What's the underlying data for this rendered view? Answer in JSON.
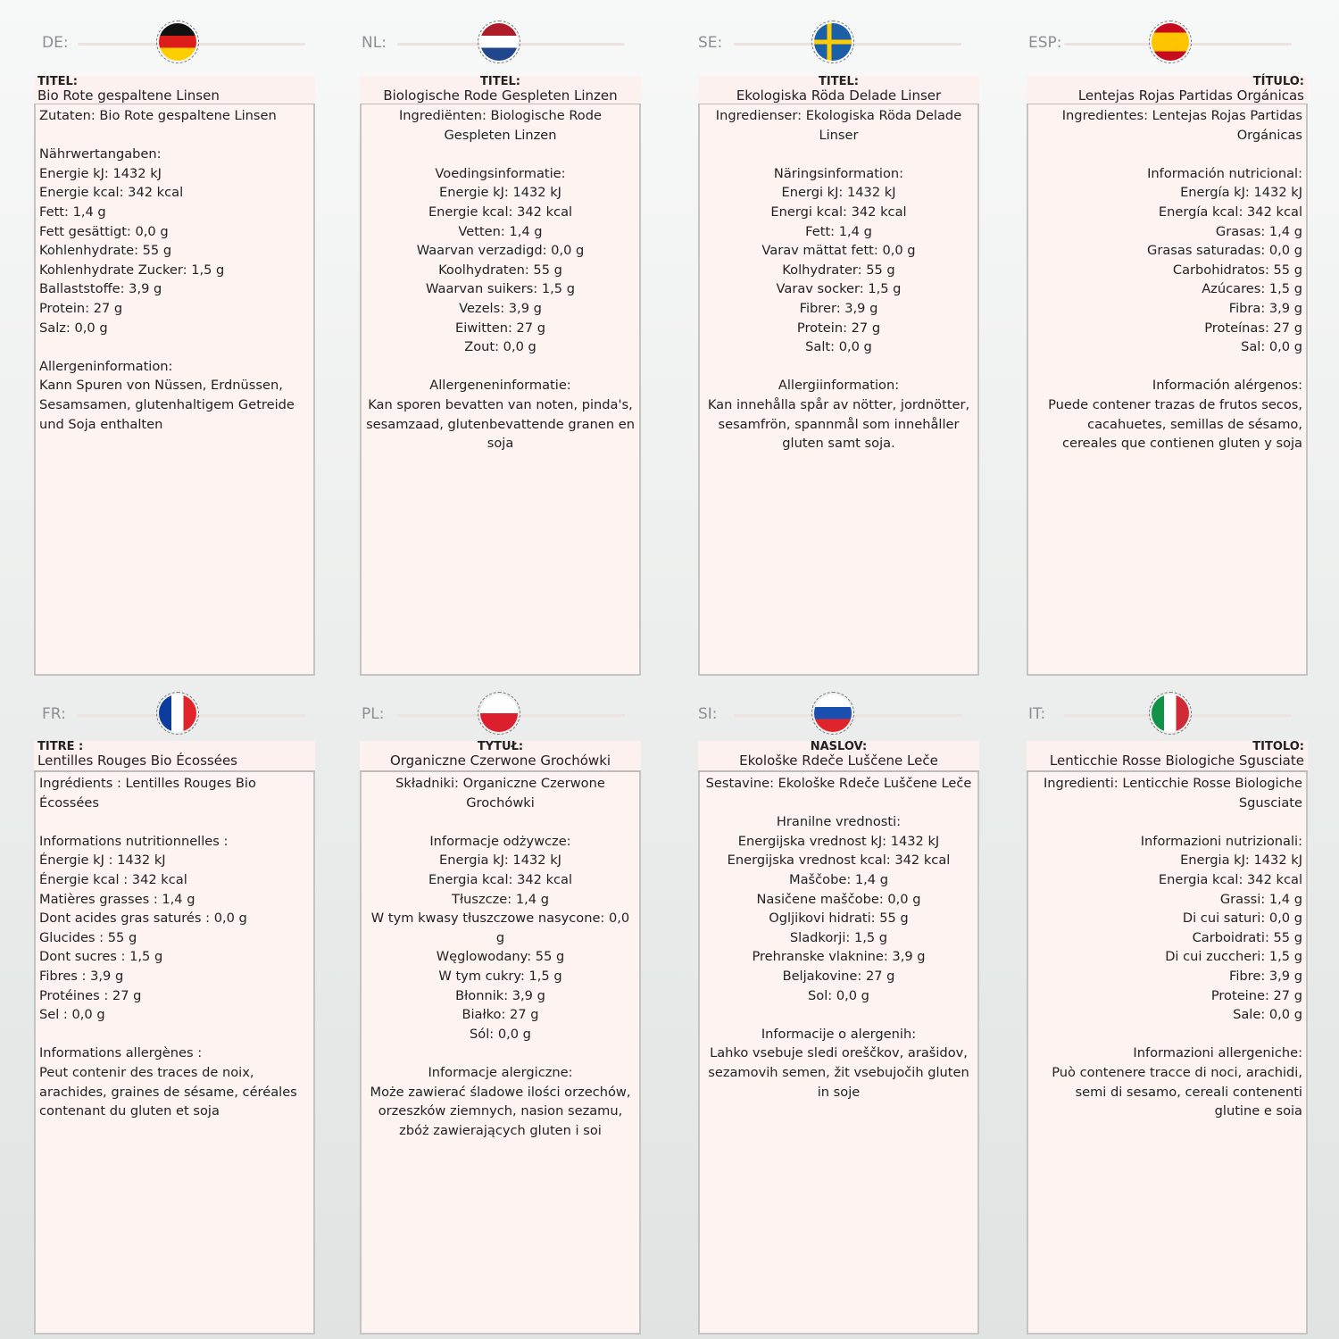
{
  "panels": [
    {
      "code": "DE:",
      "flag": "germany-flag",
      "align": "left",
      "title_label": "TITEL:",
      "title": "Bio Rote gespaltene Linsen",
      "lines": [
        "Zutaten: Bio Rote gespaltene Linsen",
        "",
        "Nährwertangaben:",
        "Energie kJ: 1432 kJ",
        "Energie kcal: 342 kcal",
        "Fett: 1,4 g",
        "Fett gesättigt: 0,0 g",
        "Kohlenhydrate: 55 g",
        "Kohlenhydrate Zucker: 1,5 g",
        "Ballaststoffe: 3,9 g",
        "Protein: 27 g",
        "Salz: 0,0 g",
        "",
        "Allergeninformation:",
        "Kann Spuren von Nüssen, Erdnüssen, Sesamsamen, glutenhaltigem Getreide und Soja enthalten"
      ]
    },
    {
      "code": "NL:",
      "flag": "netherlands-flag",
      "align": "center",
      "title_label": "TITEL:",
      "title": "Biologische Rode Gespleten Linzen",
      "lines": [
        "Ingrediënten: Biologische Rode Gespleten Linzen",
        "",
        "Voedingsinformatie:",
        "Energie kJ: 1432 kJ",
        "Energie kcal: 342 kcal",
        "Vetten: 1,4 g",
        "Waarvan verzadigd: 0,0 g",
        "Koolhydraten: 55 g",
        "Waarvan suikers: 1,5 g",
        "Vezels: 3,9 g",
        "Eiwitten: 27 g",
        "Zout: 0,0 g",
        "",
        "Allergeneninformatie:",
        "Kan sporen bevatten van noten, pinda's, sesamzaad, glutenbevattende granen en soja"
      ]
    },
    {
      "code": "SE:",
      "flag": "sweden-flag",
      "align": "center",
      "title_label": "TITEL:",
      "title": "Ekologiska Röda Delade Linser",
      "lines": [
        "Ingredienser: Ekologiska Röda Delade Linser",
        "",
        "Näringsinformation:",
        "Energi kJ: 1432 kJ",
        "Energi kcal: 342 kcal",
        "Fett: 1,4 g",
        "Varav mättat fett: 0,0 g",
        "Kolhydrater: 55 g",
        "Varav socker: 1,5 g",
        "Fibrer: 3,9 g",
        "Protein: 27 g",
        "Salt: 0,0 g",
        "",
        "Allergiinformation:",
        "Kan innehålla spår av nötter, jordnötter, sesamfrön, spannmål som innehåller gluten samt soja."
      ]
    },
    {
      "code": "ESP:",
      "flag": "spain-flag",
      "align": "right",
      "title_label": "TÍTULO:",
      "title": "Lentejas Rojas Partidas Orgánicas",
      "lines": [
        "Ingredientes: Lentejas Rojas Partidas Orgánicas",
        "",
        "Información nutricional:",
        "Energía kJ: 1432 kJ",
        "Energía kcal: 342 kcal",
        "Grasas: 1,4 g",
        "Grasas saturadas: 0,0 g",
        "Carbohidratos: 55 g",
        "Azúcares: 1,5 g",
        "Fibra: 3,9 g",
        "Proteínas: 27 g",
        "Sal: 0,0 g",
        "",
        "Información alérgenos:",
        "Puede contener trazas de frutos secos, cacahuetes, semillas de sésamo, cereales que contienen gluten y soja"
      ]
    },
    {
      "code": "FR:",
      "flag": "france-flag",
      "align": "left",
      "title_label": "TITRE :",
      "title": "Lentilles Rouges Bio Écossées",
      "lines": [
        "Ingrédients : Lentilles Rouges Bio Écossées",
        "",
        "Informations nutritionnelles :",
        "Énergie kJ : 1432 kJ",
        "Énergie kcal : 342 kcal",
        "Matières grasses : 1,4 g",
        "Dont acides gras saturés : 0,0 g",
        "Glucides : 55 g",
        "Dont sucres : 1,5 g",
        "Fibres : 3,9 g",
        "Protéines : 27 g",
        "Sel : 0,0 g",
        "",
        "Informations allergènes :",
        "Peut contenir des traces de noix, arachides, graines de sésame, céréales contenant du gluten et soja"
      ]
    },
    {
      "code": "PL:",
      "flag": "poland-flag",
      "align": "center",
      "title_label": "TYTUŁ:",
      "title": "Organiczne Czerwone Grochówki",
      "lines": [
        "Składniki: Organiczne Czerwone Grochówki",
        "",
        "Informacje odżywcze:",
        "Energia kJ: 1432 kJ",
        "Energia kcal: 342 kcal",
        "Tłuszcze: 1,4 g",
        "W tym kwasy tłuszczowe nasycone: 0,0 g",
        "Węglowodany: 55 g",
        "W tym cukry: 1,5 g",
        "Błonnik: 3,9 g",
        "Białko: 27 g",
        "Sól: 0,0 g",
        "",
        "Informacje alergiczne:",
        "Może zawierać śladowe ilości orzechów, orzeszków ziemnych, nasion sezamu, zbóż zawierających gluten i soi"
      ]
    },
    {
      "code": "SI:",
      "flag": "slovenia-flag",
      "align": "center",
      "title_label": "NASLOV:",
      "title": "Ekološke Rdeče Luščene Leče",
      "lines": [
        "Sestavine: Ekološke Rdeče Luščene Leče",
        "",
        "Hranilne vrednosti:",
        "Energijska vrednost kJ: 1432 kJ",
        "Energijska vrednost kcal: 342 kcal",
        "Maščobe: 1,4 g",
        "Nasičene maščobe: 0,0 g",
        "Ogljikovi hidrati: 55 g",
        "Sladkorji: 1,5 g",
        "Prehranske vlaknine: 3,9 g",
        "Beljakovine: 27 g",
        "Sol: 0,0 g",
        "",
        "Informacije o alergenih:",
        "Lahko vsebuje sledi oreščkov, arašidov, sezamovih semen, žit vsebujočih gluten in soje"
      ]
    },
    {
      "code": "IT:",
      "flag": "italy-flag",
      "align": "right",
      "title_label": "TITOLO:",
      "title": "Lenticchie Rosse Biologiche Sgusciate",
      "lines": [
        "Ingredienti: Lenticchie Rosse Biologiche Sgusciate",
        "",
        "Informazioni nutrizionali:",
        "Energia kJ: 1432 kJ",
        "Energia kcal: 342 kcal",
        "Grassi: 1,4 g",
        "Di cui saturi: 0,0 g",
        "Carboidrati: 55 g",
        "Di cui zuccheri: 1,5 g",
        "Fibre: 3,9 g",
        "Proteine: 27 g",
        "Sale: 0,0 g",
        "",
        "Informazioni allergeniche:",
        "Può contenere tracce di noci, arachidi, semi di sesamo, cereali contenenti glutine e soia"
      ]
    }
  ]
}
